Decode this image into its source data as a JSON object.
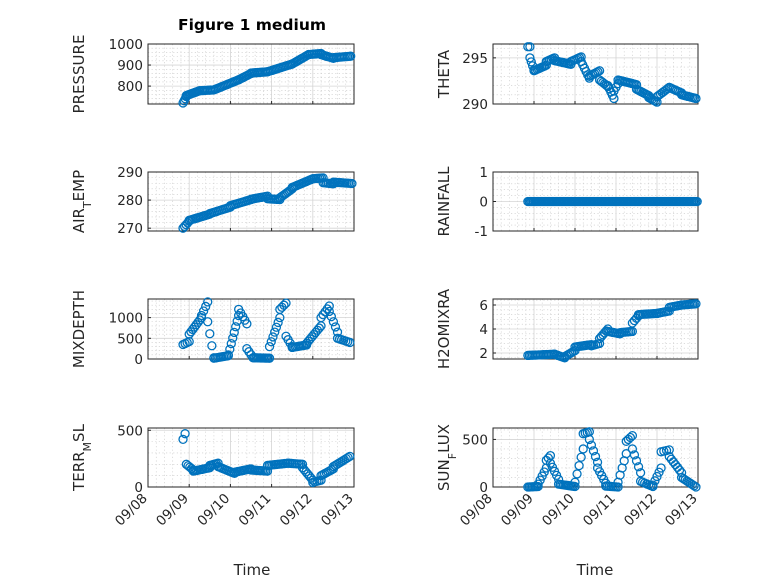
{
  "figure": {
    "title": "Figure 1 medium"
  },
  "chart_data": [
    {
      "type": "scatter",
      "ylabel": "PRESSURE",
      "ylim": [
        715,
        1000
      ],
      "yticks": [
        800,
        900,
        1000
      ],
      "yticklabels": [
        "800",
        "900",
        "1000"
      ],
      "xlim": [
        0,
        5
      ],
      "marker_color": "#0072BD",
      "segments": [
        {
          "x0": 0.85,
          "x1": 0.93,
          "y0": 720,
          "y1": 750,
          "n": 4
        },
        {
          "x0": 0.93,
          "x1": 1.25,
          "y0": 755,
          "y1": 778,
          "n": 12
        },
        {
          "x0": 1.25,
          "x1": 1.6,
          "y0": 778,
          "y1": 782,
          "n": 10
        },
        {
          "x0": 1.6,
          "x1": 2.2,
          "y0": 782,
          "y1": 830,
          "n": 18
        },
        {
          "x0": 2.2,
          "x1": 2.5,
          "y0": 830,
          "y1": 860,
          "n": 9
        },
        {
          "x0": 2.5,
          "x1": 2.9,
          "y0": 862,
          "y1": 868,
          "n": 11
        },
        {
          "x0": 2.9,
          "x1": 3.5,
          "y0": 868,
          "y1": 905,
          "n": 18
        },
        {
          "x0": 3.5,
          "x1": 3.9,
          "y0": 905,
          "y1": 950,
          "n": 12
        },
        {
          "x0": 3.9,
          "x1": 4.2,
          "y0": 950,
          "y1": 955,
          "n": 8
        },
        {
          "x0": 4.2,
          "x1": 4.5,
          "y0": 950,
          "y1": 932,
          "n": 9
        },
        {
          "x0": 4.5,
          "x1": 4.92,
          "y0": 935,
          "y1": 942,
          "n": 12
        }
      ]
    },
    {
      "type": "scatter",
      "ylabel": "THETA",
      "ylim": [
        290,
        296.5
      ],
      "yticks": [
        290,
        295
      ],
      "yticklabels": [
        "290",
        "295"
      ],
      "xlim": [
        0,
        5
      ],
      "marker_color": "#0072BD",
      "segments": [
        {
          "x0": 0.85,
          "x1": 0.9,
          "y0": 296.2,
          "y1": 296.2,
          "n": 2
        },
        {
          "x0": 0.9,
          "x1": 1.0,
          "y0": 295,
          "y1": 293.7,
          "n": 4
        },
        {
          "x0": 1.0,
          "x1": 1.3,
          "y0": 293.6,
          "y1": 294.2,
          "n": 9
        },
        {
          "x0": 1.3,
          "x1": 1.5,
          "y0": 294.6,
          "y1": 295,
          "n": 6
        },
        {
          "x0": 1.5,
          "x1": 1.9,
          "y0": 294.7,
          "y1": 294.3,
          "n": 11
        },
        {
          "x0": 1.9,
          "x1": 2.15,
          "y0": 294.6,
          "y1": 295.1,
          "n": 7
        },
        {
          "x0": 2.15,
          "x1": 2.35,
          "y0": 294.6,
          "y1": 292.8,
          "n": 6
        },
        {
          "x0": 2.35,
          "x1": 2.6,
          "y0": 293,
          "y1": 293.6,
          "n": 7
        },
        {
          "x0": 2.6,
          "x1": 2.8,
          "y0": 292.6,
          "y1": 291.9,
          "n": 6
        },
        {
          "x0": 2.8,
          "x1": 2.95,
          "y0": 292.0,
          "y1": 290.6,
          "n": 5
        },
        {
          "x0": 2.95,
          "x1": 3.05,
          "y0": 291.4,
          "y1": 292.2,
          "n": 3
        },
        {
          "x0": 3.05,
          "x1": 3.5,
          "y0": 292.6,
          "y1": 292.1,
          "n": 13
        },
        {
          "x0": 3.5,
          "x1": 3.8,
          "y0": 291.6,
          "y1": 290.9,
          "n": 9
        },
        {
          "x0": 3.8,
          "x1": 4.0,
          "y0": 290.7,
          "y1": 290.2,
          "n": 6
        },
        {
          "x0": 4.0,
          "x1": 4.3,
          "y0": 290.8,
          "y1": 291.8,
          "n": 8
        },
        {
          "x0": 4.3,
          "x1": 4.6,
          "y0": 291.8,
          "y1": 291.2,
          "n": 8
        },
        {
          "x0": 4.6,
          "x1": 4.95,
          "y0": 291.0,
          "y1": 290.6,
          "n": 10
        }
      ]
    },
    {
      "type": "scatter",
      "ylabel": "AIR_TEMP",
      "ylim": [
        269,
        290
      ],
      "yticks": [
        270,
        280,
        290
      ],
      "yticklabels": [
        "270",
        "280",
        "290"
      ],
      "xlim": [
        0,
        5
      ],
      "marker_color": "#0072BD",
      "segments": [
        {
          "x0": 0.85,
          "x1": 1.0,
          "y0": 270,
          "y1": 272.5,
          "n": 5
        },
        {
          "x0": 1.0,
          "x1": 1.5,
          "y0": 272.8,
          "y1": 275,
          "n": 14
        },
        {
          "x0": 1.5,
          "x1": 2.0,
          "y0": 275.2,
          "y1": 277.5,
          "n": 13
        },
        {
          "x0": 2.0,
          "x1": 2.5,
          "y0": 278,
          "y1": 280.2,
          "n": 13
        },
        {
          "x0": 2.5,
          "x1": 2.9,
          "y0": 280.3,
          "y1": 281.4,
          "n": 11
        },
        {
          "x0": 2.9,
          "x1": 3.2,
          "y0": 280.5,
          "y1": 280.2,
          "n": 8
        },
        {
          "x0": 3.2,
          "x1": 3.5,
          "y0": 280.8,
          "y1": 284,
          "n": 9
        },
        {
          "x0": 3.5,
          "x1": 4.0,
          "y0": 284.5,
          "y1": 287.6,
          "n": 14
        },
        {
          "x0": 4.0,
          "x1": 4.25,
          "y0": 287.6,
          "y1": 287.9,
          "n": 7
        },
        {
          "x0": 4.25,
          "x1": 4.5,
          "y0": 286.2,
          "y1": 285.8,
          "n": 7
        },
        {
          "x0": 4.5,
          "x1": 4.95,
          "y0": 286.4,
          "y1": 285.9,
          "n": 12
        }
      ]
    },
    {
      "type": "scatter",
      "ylabel": "RAINFALL",
      "ylim": [
        -1,
        1
      ],
      "yticks": [
        -1,
        0,
        1
      ],
      "yticklabels": [
        "-1",
        "0",
        "1"
      ],
      "xlim": [
        0,
        5
      ],
      "marker_color": "#0072BD",
      "segments": [
        {
          "x0": 0.85,
          "x1": 4.98,
          "y0": 0,
          "y1": 0,
          "n": 125
        }
      ]
    },
    {
      "type": "scatter",
      "ylabel": "MIXDEPTH",
      "ylim": [
        0,
        1450
      ],
      "yticks": [
        0,
        500,
        1000
      ],
      "yticklabels": [
        "0",
        "500",
        "1000"
      ],
      "xlim": [
        0,
        5
      ],
      "marker_color": "#0072BD",
      "segments": [
        {
          "x0": 0.85,
          "x1": 1.0,
          "y0": 350,
          "y1": 420,
          "n": 4
        },
        {
          "x0": 1.0,
          "x1": 1.3,
          "y0": 600,
          "y1": 1000,
          "n": 8
        },
        {
          "x0": 1.3,
          "x1": 1.45,
          "y0": 1050,
          "y1": 1380,
          "n": 4
        },
        {
          "x0": 1.45,
          "x1": 1.6,
          "y0": 900,
          "y1": 30,
          "n": 4
        },
        {
          "x0": 1.6,
          "x1": 1.95,
          "y0": 20,
          "y1": 80,
          "n": 10
        },
        {
          "x0": 1.95,
          "x1": 2.2,
          "y0": 100,
          "y1": 1050,
          "n": 8
        },
        {
          "x0": 2.2,
          "x1": 2.4,
          "y0": 1200,
          "y1": 850,
          "n": 5
        },
        {
          "x0": 2.4,
          "x1": 2.55,
          "y0": 250,
          "y1": 30,
          "n": 4
        },
        {
          "x0": 2.55,
          "x1": 2.95,
          "y0": 30,
          "y1": 20,
          "n": 12
        },
        {
          "x0": 2.95,
          "x1": 3.2,
          "y0": 300,
          "y1": 1000,
          "n": 7
        },
        {
          "x0": 3.2,
          "x1": 3.35,
          "y0": 1200,
          "y1": 1350,
          "n": 4
        },
        {
          "x0": 3.35,
          "x1": 3.5,
          "y0": 550,
          "y1": 300,
          "n": 4
        },
        {
          "x0": 3.5,
          "x1": 3.85,
          "y0": 280,
          "y1": 340,
          "n": 10
        },
        {
          "x0": 3.85,
          "x1": 4.2,
          "y0": 380,
          "y1": 800,
          "n": 9
        },
        {
          "x0": 4.2,
          "x1": 4.4,
          "y0": 1000,
          "y1": 1280,
          "n": 5
        },
        {
          "x0": 4.4,
          "x1": 4.6,
          "y0": 1150,
          "y1": 650,
          "n": 5
        },
        {
          "x0": 4.6,
          "x1": 4.9,
          "y0": 500,
          "y1": 400,
          "n": 7
        }
      ]
    },
    {
      "type": "scatter",
      "ylabel": "H2OMIXRA",
      "ylim": [
        1.5,
        6.5
      ],
      "yticks": [
        2,
        4,
        6
      ],
      "yticklabels": [
        "2",
        "4",
        "6"
      ],
      "xlim": [
        0,
        5
      ],
      "marker_color": "#0072BD",
      "segments": [
        {
          "x0": 0.85,
          "x1": 1.5,
          "y0": 1.8,
          "y1": 1.9,
          "n": 18
        },
        {
          "x0": 1.5,
          "x1": 1.75,
          "y0": 1.9,
          "y1": 1.6,
          "n": 7
        },
        {
          "x0": 1.75,
          "x1": 2.0,
          "y0": 1.7,
          "y1": 2.2,
          "n": 7
        },
        {
          "x0": 2.0,
          "x1": 2.4,
          "y0": 2.5,
          "y1": 2.7,
          "n": 11
        },
        {
          "x0": 2.4,
          "x1": 2.6,
          "y0": 2.6,
          "y1": 2.8,
          "n": 5
        },
        {
          "x0": 2.6,
          "x1": 2.8,
          "y0": 3.2,
          "y1": 4.0,
          "n": 6
        },
        {
          "x0": 2.8,
          "x1": 3.1,
          "y0": 3.8,
          "y1": 3.6,
          "n": 8
        },
        {
          "x0": 3.1,
          "x1": 3.4,
          "y0": 3.7,
          "y1": 3.8,
          "n": 8
        },
        {
          "x0": 3.4,
          "x1": 3.55,
          "y0": 4.5,
          "y1": 5.1,
          "n": 4
        },
        {
          "x0": 3.55,
          "x1": 4.0,
          "y0": 5.2,
          "y1": 5.3,
          "n": 12
        },
        {
          "x0": 4.0,
          "x1": 4.3,
          "y0": 5.3,
          "y1": 5.5,
          "n": 8
        },
        {
          "x0": 4.3,
          "x1": 4.6,
          "y0": 5.8,
          "y1": 6.0,
          "n": 8
        },
        {
          "x0": 4.6,
          "x1": 4.95,
          "y0": 6.0,
          "y1": 6.1,
          "n": 10
        }
      ]
    },
    {
      "type": "scatter",
      "ylabel": "TERR_MSL",
      "ylim": [
        0,
        520
      ],
      "yticks": [
        0,
        500
      ],
      "yticklabels": [
        "0",
        "500"
      ],
      "xlim": [
        0,
        5
      ],
      "marker_color": "#0072BD",
      "segments": [
        {
          "x0": 0.85,
          "x1": 0.9,
          "y0": 420,
          "y1": 470,
          "n": 2
        },
        {
          "x0": 0.93,
          "x1": 1.1,
          "y0": 200,
          "y1": 150,
          "n": 5
        },
        {
          "x0": 1.1,
          "x1": 1.5,
          "y0": 140,
          "y1": 170,
          "n": 11
        },
        {
          "x0": 1.5,
          "x1": 1.7,
          "y0": 190,
          "y1": 210,
          "n": 6
        },
        {
          "x0": 1.7,
          "x1": 2.1,
          "y0": 180,
          "y1": 120,
          "n": 11
        },
        {
          "x0": 2.1,
          "x1": 2.5,
          "y0": 130,
          "y1": 160,
          "n": 11
        },
        {
          "x0": 2.5,
          "x1": 2.9,
          "y0": 150,
          "y1": 140,
          "n": 11
        },
        {
          "x0": 2.9,
          "x1": 3.4,
          "y0": 190,
          "y1": 210,
          "n": 13
        },
        {
          "x0": 3.4,
          "x1": 3.75,
          "y0": 210,
          "y1": 200,
          "n": 9
        },
        {
          "x0": 3.75,
          "x1": 4.0,
          "y0": 170,
          "y1": 60,
          "n": 7
        },
        {
          "x0": 4.0,
          "x1": 4.2,
          "y0": 40,
          "y1": 60,
          "n": 5
        },
        {
          "x0": 4.2,
          "x1": 4.5,
          "y0": 100,
          "y1": 160,
          "n": 8
        },
        {
          "x0": 4.5,
          "x1": 4.9,
          "y0": 180,
          "y1": 270,
          "n": 10
        }
      ]
    },
    {
      "type": "scatter",
      "ylabel": "SUN_FLUX",
      "ylim": [
        0,
        620
      ],
      "yticks": [
        0,
        500
      ],
      "yticklabels": [
        "0",
        "500"
      ],
      "xlim": [
        0,
        5
      ],
      "marker_color": "#0072BD",
      "segments": [
        {
          "x0": 0.85,
          "x1": 1.1,
          "y0": 0,
          "y1": 5,
          "n": 8
        },
        {
          "x0": 1.1,
          "x1": 1.3,
          "y0": 30,
          "y1": 200,
          "n": 5
        },
        {
          "x0": 1.3,
          "x1": 1.4,
          "y0": 280,
          "y1": 330,
          "n": 3
        },
        {
          "x0": 1.4,
          "x1": 1.6,
          "y0": 250,
          "y1": 80,
          "n": 5
        },
        {
          "x0": 1.6,
          "x1": 2.0,
          "y0": 30,
          "y1": 5,
          "n": 11
        },
        {
          "x0": 2.0,
          "x1": 2.2,
          "y0": 50,
          "y1": 400,
          "n": 5
        },
        {
          "x0": 2.2,
          "x1": 2.35,
          "y0": 560,
          "y1": 580,
          "n": 4
        },
        {
          "x0": 2.35,
          "x1": 2.55,
          "y0": 500,
          "y1": 260,
          "n": 5
        },
        {
          "x0": 2.55,
          "x1": 2.75,
          "y0": 200,
          "y1": 40,
          "n": 5
        },
        {
          "x0": 2.75,
          "x1": 3.05,
          "y0": 10,
          "y1": 0,
          "n": 8
        },
        {
          "x0": 3.05,
          "x1": 3.25,
          "y0": 50,
          "y1": 350,
          "n": 5
        },
        {
          "x0": 3.25,
          "x1": 3.4,
          "y0": 480,
          "y1": 540,
          "n": 4
        },
        {
          "x0": 3.4,
          "x1": 3.6,
          "y0": 400,
          "y1": 150,
          "n": 5
        },
        {
          "x0": 3.6,
          "x1": 3.9,
          "y0": 60,
          "y1": 5,
          "n": 7
        },
        {
          "x0": 3.9,
          "x1": 4.1,
          "y0": 20,
          "y1": 200,
          "n": 5
        },
        {
          "x0": 4.1,
          "x1": 4.3,
          "y0": 370,
          "y1": 390,
          "n": 4
        },
        {
          "x0": 4.3,
          "x1": 4.6,
          "y0": 320,
          "y1": 150,
          "n": 7
        },
        {
          "x0": 4.6,
          "x1": 4.95,
          "y0": 100,
          "y1": 0,
          "n": 9
        }
      ]
    }
  ],
  "x_axis": {
    "label": "Time",
    "ticks": [
      0,
      1,
      2,
      3,
      4,
      5
    ],
    "tick_labels": [
      "09/08",
      "09/09",
      "09/10",
      "09/11",
      "09/12",
      "09/13"
    ]
  }
}
